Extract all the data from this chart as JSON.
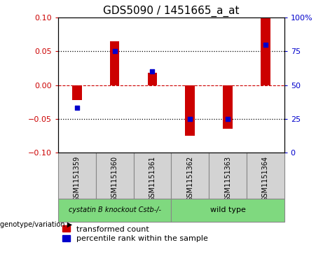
{
  "title": "GDS5090 / 1451665_a_at",
  "samples": [
    "GSM1151359",
    "GSM1151360",
    "GSM1151361",
    "GSM1151362",
    "GSM1151363",
    "GSM1151364"
  ],
  "red_bars": [
    -0.022,
    0.065,
    0.018,
    -0.075,
    -0.065,
    0.1
  ],
  "blue_dots": [
    33,
    75,
    60,
    25,
    25,
    80
  ],
  "ylim_left": [
    -0.1,
    0.1
  ],
  "ylim_right": [
    0,
    100
  ],
  "yticks_left": [
    -0.1,
    -0.05,
    0,
    0.05,
    0.1
  ],
  "yticks_right": [
    0,
    25,
    50,
    75,
    100
  ],
  "hlines_dotted": [
    -0.05,
    0.05
  ],
  "hline_dashed_red": 0,
  "group1_label": "cystatin B knockout Cstb-/-",
  "group2_label": "wild type",
  "group_color": "#7FD97F",
  "group1_indices": [
    0,
    1,
    2
  ],
  "group2_indices": [
    3,
    4,
    5
  ],
  "bar_color": "#cc0000",
  "dot_color": "#0000cc",
  "bar_width": 0.25,
  "dot_size": 25,
  "genotype_label": "genotype/variation",
  "legend_red": "transformed count",
  "legend_blue": "percentile rank within the sample",
  "tick_color_left": "#cc0000",
  "tick_color_right": "#0000cc",
  "tick_fontsize": 8,
  "title_fontsize": 11,
  "sample_label_fontsize": 7,
  "group_label_fontsize": 8,
  "legend_fontsize": 8,
  "cell_bg_color": "#d3d3d3",
  "cell_border_color": "#888888"
}
